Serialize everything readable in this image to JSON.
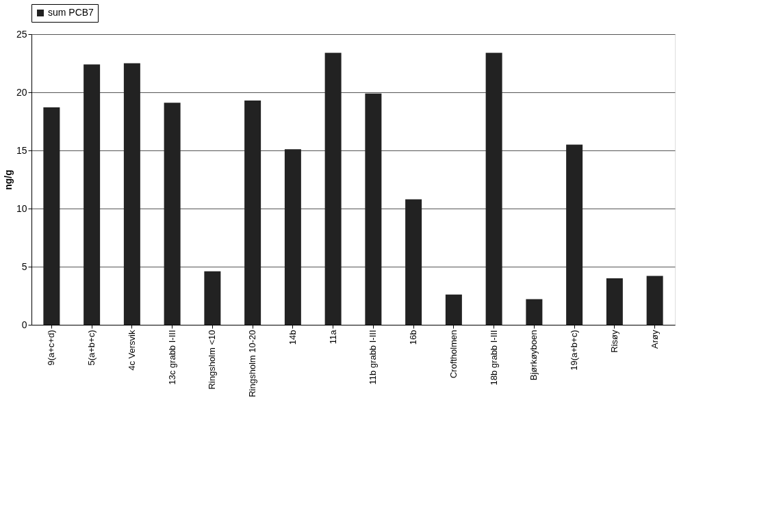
{
  "chart_data": {
    "type": "bar",
    "ylabel": "ng/g",
    "legend": "top",
    "categories": [
      "9(a+c+d)",
      "5(a+b+c)",
      "4c Versvik",
      "13c grabb I-III",
      "Ringsholm <10",
      "Ringsholm 10-20",
      "14b",
      "11a",
      "11b grabb I-III",
      "16b",
      "Croftholmen",
      "18b grabb I-III",
      "Bjørkøyboen",
      "19(a+b+c)",
      "Risøy",
      "Arøy"
    ],
    "series": [
      {
        "name": "sum PCB7",
        "color": "#222222",
        "values": [
          18.7,
          22.4,
          22.5,
          19.1,
          4.6,
          19.3,
          15.1,
          23.4,
          19.9,
          10.8,
          2.6,
          23.4,
          2.2,
          15.5,
          4.0,
          4.2
        ]
      }
    ],
    "ylim": [
      0,
      25
    ],
    "yticks": [
      0,
      5,
      10,
      15,
      20,
      25
    ],
    "grid": "y"
  }
}
